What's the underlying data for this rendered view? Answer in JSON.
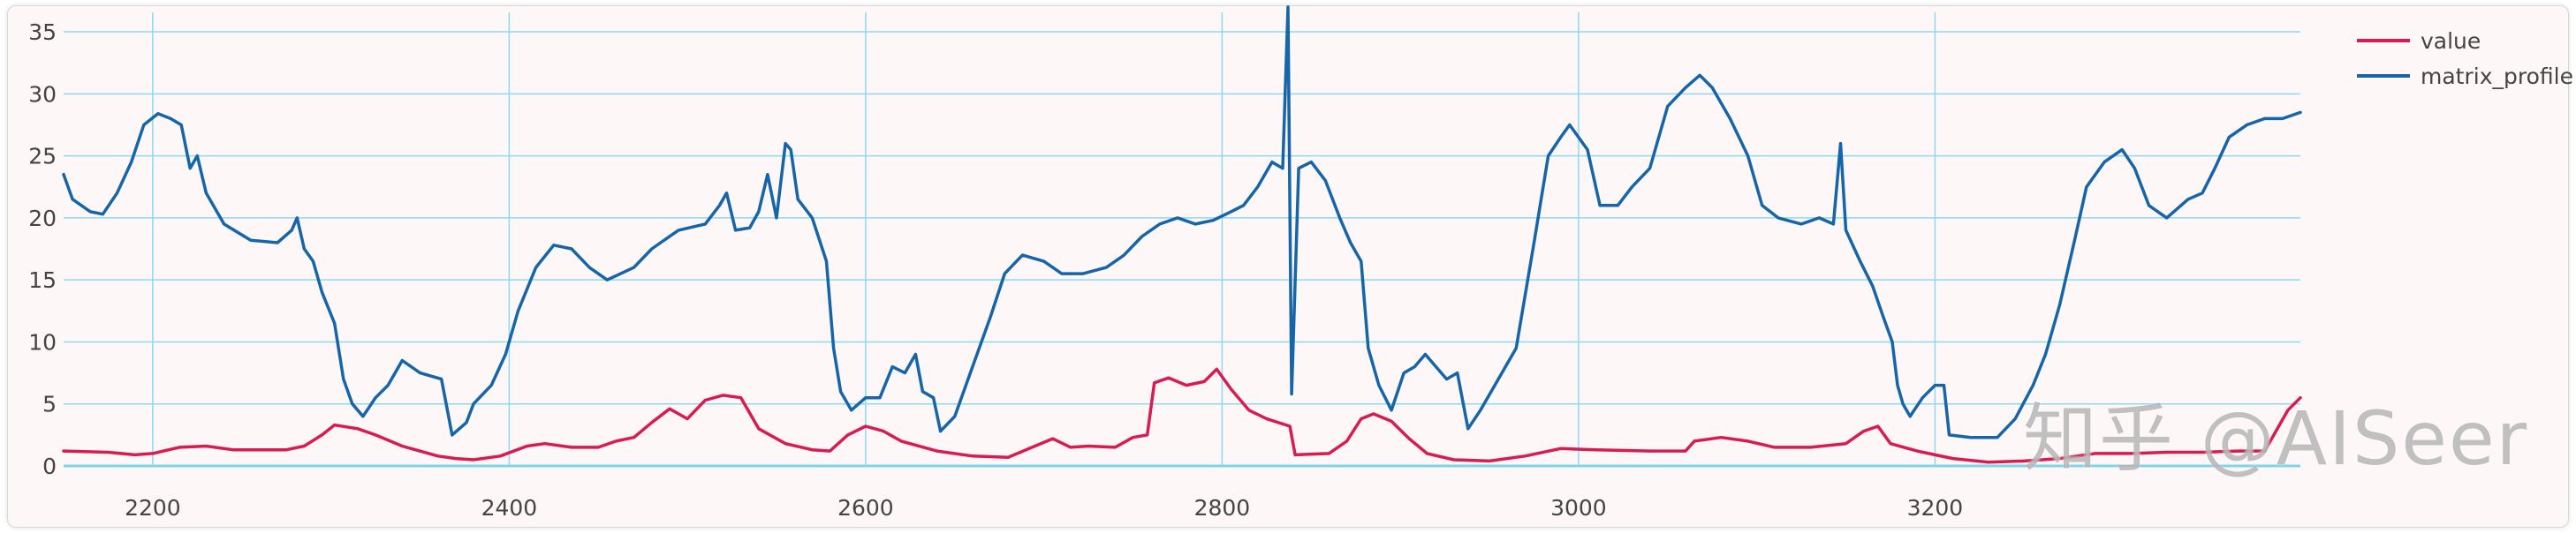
{
  "chart_data": {
    "type": "line",
    "title": "",
    "xlabel": "",
    "ylabel": "",
    "xlim": [
      2150,
      3405
    ],
    "ylim": [
      0,
      36
    ],
    "xticks": [
      2200,
      2400,
      2600,
      2800,
      3000,
      3200
    ],
    "yticks": [
      0,
      5,
      10,
      15,
      20,
      25,
      30,
      35
    ],
    "grid": true,
    "legend_position": "top-right",
    "series": [
      {
        "name": "value",
        "color": "#d81b50",
        "points": [
          [
            2150,
            1.2
          ],
          [
            2175,
            1.1
          ],
          [
            2190,
            0.9
          ],
          [
            2200,
            1.0
          ],
          [
            2215,
            1.5
          ],
          [
            2230,
            1.6
          ],
          [
            2245,
            1.3
          ],
          [
            2260,
            1.3
          ],
          [
            2275,
            1.3
          ],
          [
            2285,
            1.6
          ],
          [
            2295,
            2.5
          ],
          [
            2302,
            3.3
          ],
          [
            2315,
            3.0
          ],
          [
            2325,
            2.5
          ],
          [
            2340,
            1.6
          ],
          [
            2360,
            0.8
          ],
          [
            2370,
            0.6
          ],
          [
            2380,
            0.5
          ],
          [
            2395,
            0.8
          ],
          [
            2410,
            1.6
          ],
          [
            2420,
            1.8
          ],
          [
            2435,
            1.5
          ],
          [
            2450,
            1.5
          ],
          [
            2460,
            2.0
          ],
          [
            2470,
            2.3
          ],
          [
            2480,
            3.5
          ],
          [
            2490,
            4.6
          ],
          [
            2500,
            3.8
          ],
          [
            2510,
            5.3
          ],
          [
            2520,
            5.7
          ],
          [
            2530,
            5.5
          ],
          [
            2540,
            3.0
          ],
          [
            2555,
            1.8
          ],
          [
            2570,
            1.3
          ],
          [
            2580,
            1.2
          ],
          [
            2590,
            2.5
          ],
          [
            2600,
            3.2
          ],
          [
            2610,
            2.8
          ],
          [
            2620,
            2.0
          ],
          [
            2640,
            1.2
          ],
          [
            2660,
            0.8
          ],
          [
            2680,
            0.7
          ],
          [
            2695,
            1.6
          ],
          [
            2705,
            2.2
          ],
          [
            2715,
            1.5
          ],
          [
            2725,
            1.6
          ],
          [
            2740,
            1.5
          ],
          [
            2750,
            2.3
          ],
          [
            2758,
            2.5
          ],
          [
            2762,
            6.7
          ],
          [
            2770,
            7.1
          ],
          [
            2780,
            6.5
          ],
          [
            2790,
            6.8
          ],
          [
            2797,
            7.8
          ],
          [
            2805,
            6.2
          ],
          [
            2815,
            4.5
          ],
          [
            2825,
            3.8
          ],
          [
            2838,
            3.2
          ],
          [
            2841,
            0.9
          ],
          [
            2860,
            1.0
          ],
          [
            2870,
            2.0
          ],
          [
            2878,
            3.8
          ],
          [
            2885,
            4.2
          ],
          [
            2895,
            3.6
          ],
          [
            2905,
            2.2
          ],
          [
            2915,
            1.0
          ],
          [
            2930,
            0.5
          ],
          [
            2950,
            0.4
          ],
          [
            2970,
            0.8
          ],
          [
            2990,
            1.4
          ],
          [
            3010,
            1.3
          ],
          [
            3040,
            1.2
          ],
          [
            3060,
            1.2
          ],
          [
            3065,
            2.0
          ],
          [
            3080,
            2.3
          ],
          [
            3095,
            2.0
          ],
          [
            3110,
            1.5
          ],
          [
            3130,
            1.5
          ],
          [
            3150,
            1.8
          ],
          [
            3160,
            2.8
          ],
          [
            3168,
            3.2
          ],
          [
            3175,
            1.8
          ],
          [
            3190,
            1.2
          ],
          [
            3210,
            0.6
          ],
          [
            3230,
            0.3
          ],
          [
            3250,
            0.4
          ],
          [
            3270,
            0.6
          ],
          [
            3290,
            1.0
          ],
          [
            3310,
            1.0
          ],
          [
            3330,
            1.1
          ],
          [
            3350,
            1.1
          ],
          [
            3370,
            1.2
          ],
          [
            3385,
            1.2
          ],
          [
            3398,
            4.5
          ],
          [
            3405,
            5.5
          ]
        ]
      },
      {
        "name": "matrix_profile",
        "color": "#1565a8",
        "points": [
          [
            2150,
            23.5
          ],
          [
            2155,
            21.5
          ],
          [
            2165,
            20.5
          ],
          [
            2172,
            20.3
          ],
          [
            2180,
            22.0
          ],
          [
            2188,
            24.5
          ],
          [
            2195,
            27.5
          ],
          [
            2203,
            28.4
          ],
          [
            2210,
            28.0
          ],
          [
            2216,
            27.5
          ],
          [
            2221,
            24.0
          ],
          [
            2225,
            25.0
          ],
          [
            2230,
            22.0
          ],
          [
            2240,
            19.5
          ],
          [
            2255,
            18.2
          ],
          [
            2270,
            18.0
          ],
          [
            2278,
            19.0
          ],
          [
            2281,
            20.0
          ],
          [
            2285,
            17.5
          ],
          [
            2290,
            16.5
          ],
          [
            2295,
            14.0
          ],
          [
            2302,
            11.5
          ],
          [
            2307,
            7.0
          ],
          [
            2312,
            5.0
          ],
          [
            2318,
            4.0
          ],
          [
            2325,
            5.5
          ],
          [
            2332,
            6.5
          ],
          [
            2340,
            8.5
          ],
          [
            2350,
            7.5
          ],
          [
            2362,
            7.0
          ],
          [
            2368,
            2.5
          ],
          [
            2376,
            3.5
          ],
          [
            2380,
            5.0
          ],
          [
            2390,
            6.5
          ],
          [
            2398,
            9.0
          ],
          [
            2405,
            12.5
          ],
          [
            2415,
            16.0
          ],
          [
            2425,
            17.8
          ],
          [
            2435,
            17.5
          ],
          [
            2445,
            16.0
          ],
          [
            2455,
            15.0
          ],
          [
            2470,
            16.0
          ],
          [
            2480,
            17.5
          ],
          [
            2495,
            19.0
          ],
          [
            2510,
            19.5
          ],
          [
            2518,
            21.0
          ],
          [
            2522,
            22.0
          ],
          [
            2527,
            19.0
          ],
          [
            2535,
            19.2
          ],
          [
            2540,
            20.5
          ],
          [
            2545,
            23.5
          ],
          [
            2550,
            20.0
          ],
          [
            2555,
            26.0
          ],
          [
            2558,
            25.5
          ],
          [
            2562,
            21.5
          ],
          [
            2570,
            20.0
          ],
          [
            2578,
            16.5
          ],
          [
            2582,
            9.5
          ],
          [
            2586,
            6.0
          ],
          [
            2592,
            4.5
          ],
          [
            2600,
            5.5
          ],
          [
            2608,
            5.5
          ],
          [
            2615,
            8.0
          ],
          [
            2622,
            7.5
          ],
          [
            2628,
            9.0
          ],
          [
            2632,
            6.0
          ],
          [
            2638,
            5.5
          ],
          [
            2642,
            2.8
          ],
          [
            2650,
            4.0
          ],
          [
            2660,
            8.0
          ],
          [
            2670,
            12.0
          ],
          [
            2678,
            15.5
          ],
          [
            2688,
            17.0
          ],
          [
            2700,
            16.5
          ],
          [
            2710,
            15.5
          ],
          [
            2722,
            15.5
          ],
          [
            2735,
            16.0
          ],
          [
            2745,
            17.0
          ],
          [
            2755,
            18.5
          ],
          [
            2765,
            19.5
          ],
          [
            2775,
            20.0
          ],
          [
            2785,
            19.5
          ],
          [
            2795,
            19.8
          ],
          [
            2805,
            20.5
          ],
          [
            2812,
            21.0
          ],
          [
            2820,
            22.5
          ],
          [
            2828,
            24.5
          ],
          [
            2834,
            24.0
          ],
          [
            2837,
            37.0
          ],
          [
            2839,
            5.8
          ],
          [
            2843,
            24.0
          ],
          [
            2850,
            24.5
          ],
          [
            2858,
            23.0
          ],
          [
            2866,
            20.0
          ],
          [
            2872,
            18.0
          ],
          [
            2878,
            16.5
          ],
          [
            2882,
            9.5
          ],
          [
            2888,
            6.5
          ],
          [
            2895,
            4.5
          ],
          [
            2902,
            7.5
          ],
          [
            2908,
            8.0
          ],
          [
            2914,
            9.0
          ],
          [
            2920,
            8.0
          ],
          [
            2926,
            7.0
          ],
          [
            2932,
            7.5
          ],
          [
            2938,
            3.0
          ],
          [
            2945,
            4.5
          ],
          [
            2955,
            7.0
          ],
          [
            2965,
            9.5
          ],
          [
            2975,
            18.0
          ],
          [
            2983,
            25.0
          ],
          [
            2990,
            26.5
          ],
          [
            2995,
            27.5
          ],
          [
            3005,
            25.5
          ],
          [
            3012,
            21.0
          ],
          [
            3022,
            21.0
          ],
          [
            3030,
            22.5
          ],
          [
            3040,
            24.0
          ],
          [
            3050,
            29.0
          ],
          [
            3060,
            30.5
          ],
          [
            3068,
            31.5
          ],
          [
            3075,
            30.5
          ],
          [
            3085,
            28.0
          ],
          [
            3095,
            25.0
          ],
          [
            3103,
            21.0
          ],
          [
            3112,
            20.0
          ],
          [
            3125,
            19.5
          ],
          [
            3135,
            20.0
          ],
          [
            3143,
            19.5
          ],
          [
            3147,
            26.0
          ],
          [
            3150,
            19.0
          ],
          [
            3158,
            16.5
          ],
          [
            3165,
            14.5
          ],
          [
            3171,
            12.0
          ],
          [
            3176,
            10.0
          ],
          [
            3179,
            6.5
          ],
          [
            3182,
            5.0
          ],
          [
            3186,
            4.0
          ],
          [
            3193,
            5.5
          ],
          [
            3200,
            6.5
          ],
          [
            3205,
            6.5
          ],
          [
            3208,
            2.5
          ],
          [
            3220,
            2.3
          ],
          [
            3235,
            2.3
          ],
          [
            3245,
            3.8
          ],
          [
            3255,
            6.5
          ],
          [
            3262,
            9.0
          ],
          [
            3270,
            13.0
          ],
          [
            3278,
            18.0
          ],
          [
            3285,
            22.5
          ],
          [
            3295,
            24.5
          ],
          [
            3305,
            25.5
          ],
          [
            3312,
            24.0
          ],
          [
            3320,
            21.0
          ],
          [
            3330,
            20.0
          ],
          [
            3342,
            21.5
          ],
          [
            3350,
            22.0
          ],
          [
            3357,
            24.0
          ],
          [
            3365,
            26.5
          ],
          [
            3375,
            27.5
          ],
          [
            3385,
            28.0
          ],
          [
            3395,
            28.0
          ],
          [
            3405,
            28.5
          ]
        ]
      }
    ]
  },
  "watermark": "知乎 @AISeer"
}
